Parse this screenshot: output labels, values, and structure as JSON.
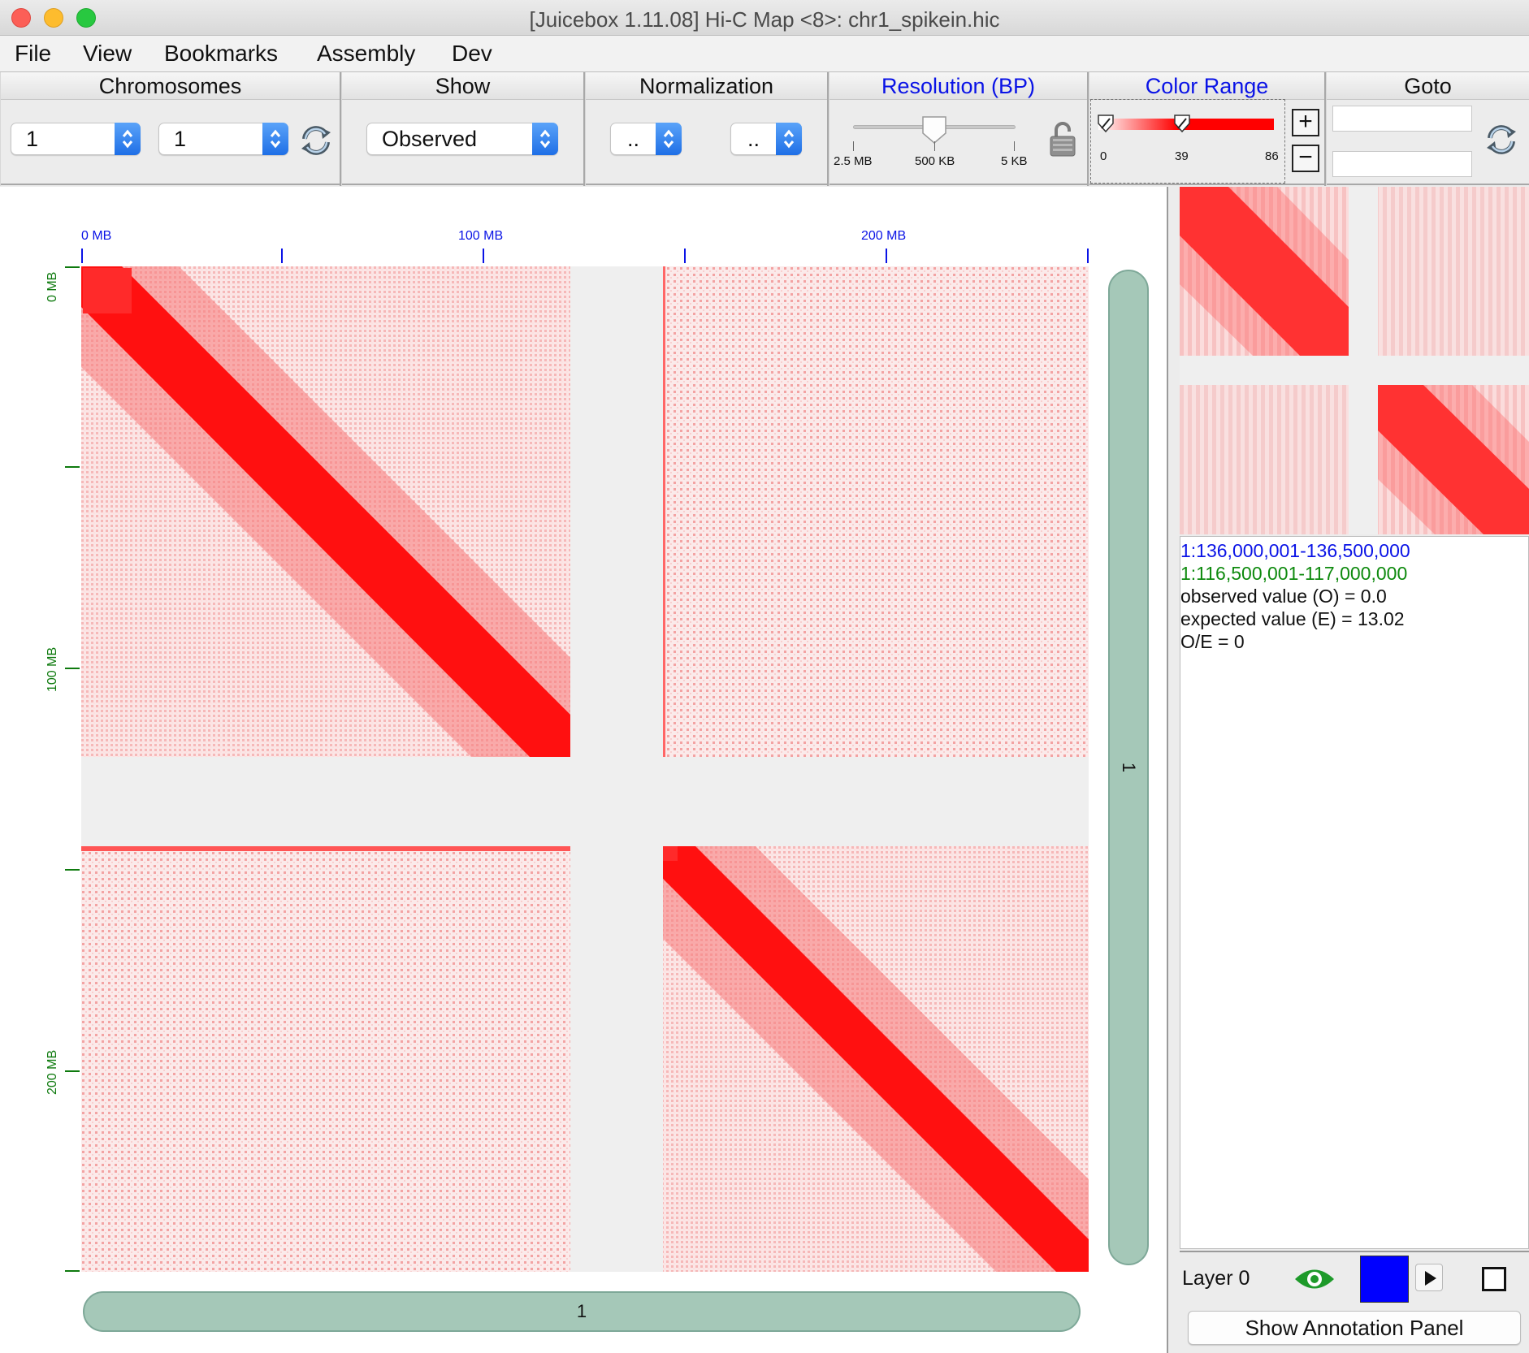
{
  "window": {
    "title": "[Juicebox 1.11.08] Hi-C Map <8>: chr1_spikein.hic"
  },
  "menu": {
    "items": [
      "File",
      "View",
      "Bookmarks",
      "Assembly",
      "Dev"
    ]
  },
  "toolbar": {
    "chromosomes": {
      "label": "Chromosomes",
      "chr_x": "1",
      "chr_y": "1",
      "refresh_icon": "refresh-icon"
    },
    "show": {
      "label": "Show",
      "value": "Observed"
    },
    "normalization": {
      "label": "Normalization",
      "value_1": "..",
      "value_2": ".."
    },
    "resolution": {
      "label": "Resolution (BP)",
      "ticks": [
        "2.5 MB",
        "500 KB",
        "5 KB"
      ],
      "selected": "500 KB",
      "lock_icon": "unlock-icon"
    },
    "color_range": {
      "label": "Color Range",
      "min": "0",
      "mid": "39",
      "max": "86",
      "color": "#ff0000"
    },
    "goto": {
      "label": "Goto",
      "field_1": "",
      "field_2": "",
      "refresh_icon": "refresh-icon"
    }
  },
  "heatmap": {
    "x_axis_labels": [
      "0 MB",
      "100 MB",
      "200 MB"
    ],
    "y_axis_labels": [
      "0 MB",
      "100 MB",
      "200 MB"
    ],
    "chromosome_label_bottom": "1",
    "chromosome_label_right": "1",
    "heat_color": "#ff0000",
    "axis_x_color": "#0a13e6",
    "axis_y_color": "#0e7a0e"
  },
  "info": {
    "x_coord": "1:136,000,001-136,500,000",
    "y_coord": "1:116,500,001-117,000,000",
    "observed": "observed value (O) = 0.0",
    "expected": "expected value (E) = 13.02",
    "oe": "O/E = 0",
    "x_color": "#0a13e6",
    "y_color": "#0e8a0e"
  },
  "layers": {
    "label": "Layer 0",
    "visibility_icon": "eye-icon",
    "layer_color": "#0000ff",
    "play_icon": "play-icon",
    "square_icon": "square-icon"
  },
  "annotation_button": "Show Annotation Panel"
}
